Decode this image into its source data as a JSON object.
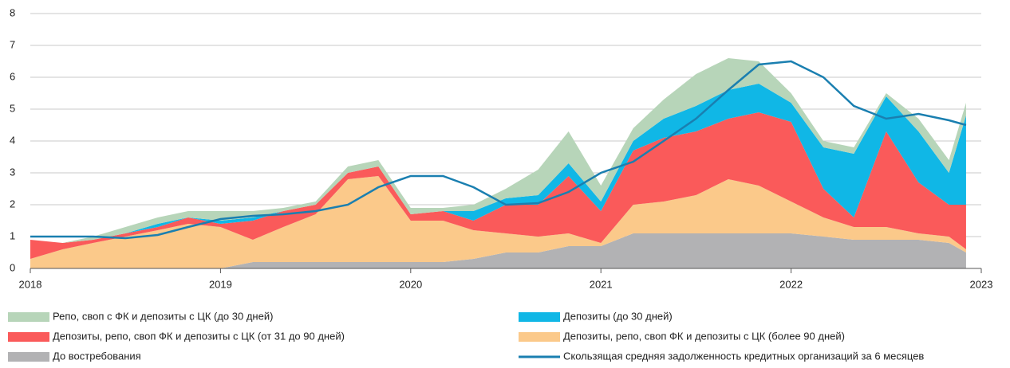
{
  "chart_data": {
    "type": "stacked_area",
    "x": [
      2018.0,
      2018.17,
      2018.33,
      2018.5,
      2018.67,
      2018.83,
      2019.0,
      2019.17,
      2019.33,
      2019.5,
      2019.67,
      2019.83,
      2020.0,
      2020.17,
      2020.33,
      2020.5,
      2020.67,
      2020.83,
      2021.0,
      2021.17,
      2021.33,
      2021.5,
      2021.67,
      2021.83,
      2022.0,
      2022.17,
      2022.33,
      2022.5,
      2022.67,
      2022.83,
      2022.92
    ],
    "xlim": [
      2018,
      2023
    ],
    "xticks": [
      2018,
      2019,
      2020,
      2021,
      2022,
      2023
    ],
    "ylim": [
      0,
      8
    ],
    "yticks": [
      0,
      1,
      2,
      3,
      4,
      5,
      6,
      7,
      8
    ],
    "grid": true,
    "series": [
      {
        "name": "До востребования",
        "color": "#b2b2b4",
        "values": [
          0,
          0,
          0,
          0,
          0,
          0,
          0,
          0.2,
          0.2,
          0.2,
          0.2,
          0.2,
          0.2,
          0.2,
          0.3,
          0.5,
          0.5,
          0.7,
          0.7,
          1.1,
          1.1,
          1.1,
          1.1,
          1.1,
          1.1,
          1.0,
          0.9,
          0.9,
          0.9,
          0.8,
          0.5
        ]
      },
      {
        "name": "Депозиты, репо, своп ФК и депозиты с ЦК (более 90 дней)",
        "color": "#fbc98a",
        "values": [
          0.3,
          0.6,
          0.8,
          1.0,
          1.2,
          1.4,
          1.3,
          0.7,
          1.1,
          1.5,
          2.6,
          2.7,
          1.3,
          1.3,
          0.9,
          0.6,
          0.5,
          0.4,
          0.1,
          0.9,
          1.0,
          1.2,
          1.7,
          1.5,
          1.0,
          0.6,
          0.4,
          0.4,
          0.2,
          0.2,
          0.1
        ]
      },
      {
        "name": "Депозиты, репо, своп ФК и депозиты с ЦК (от 31 до 90 дней)",
        "color": "#fa5a5a",
        "values": [
          0.6,
          0.2,
          0.1,
          0.1,
          0.1,
          0.2,
          0.1,
          0.6,
          0.5,
          0.3,
          0.2,
          0.3,
          0.2,
          0.3,
          0.3,
          0.9,
          1.0,
          1.8,
          1.0,
          1.7,
          2.0,
          2.0,
          1.9,
          2.3,
          2.5,
          0.9,
          0.3,
          3.0,
          1.6,
          1.0,
          1.4
        ]
      },
      {
        "name": "Депозиты (до 30 дней)",
        "color": "#10b7e6",
        "values": [
          0,
          0,
          0,
          0,
          0.1,
          0,
          0.1,
          0.1,
          0,
          0,
          0,
          0,
          0,
          0,
          0.3,
          0.2,
          0.3,
          0.4,
          0.3,
          0.3,
          0.6,
          0.8,
          0.9,
          0.9,
          0.6,
          1.3,
          2.0,
          1.1,
          1.6,
          1.0,
          2.8
        ]
      },
      {
        "name": "Репо, своп с ФК и депозиты с ЦК (до 30 дней)",
        "color": "#b7d5b9",
        "values": [
          0,
          0,
          0.1,
          0.2,
          0.2,
          0.2,
          0.3,
          0.2,
          0.1,
          0.1,
          0.2,
          0.2,
          0.2,
          0.1,
          0.2,
          0.3,
          0.8,
          1.0,
          0.5,
          0.4,
          0.6,
          1.0,
          1.0,
          0.7,
          0.3,
          0.2,
          0.2,
          0.1,
          0.4,
          0.4,
          0.4
        ]
      },
      {
        "name": "Скользящая средняя задолженность кредитных организаций за 6 месяцев",
        "color": "#1a7fb0",
        "kind": "line",
        "values": [
          1.0,
          1.0,
          1.0,
          0.95,
          1.05,
          1.3,
          1.55,
          1.65,
          1.7,
          1.8,
          2.0,
          2.55,
          2.9,
          2.9,
          2.55,
          2.0,
          2.05,
          2.4,
          3.0,
          3.35,
          4.0,
          4.7,
          5.6,
          6.4,
          6.5,
          6.0,
          5.1,
          4.7,
          4.85,
          4.65,
          4.5
        ]
      }
    ]
  }
}
